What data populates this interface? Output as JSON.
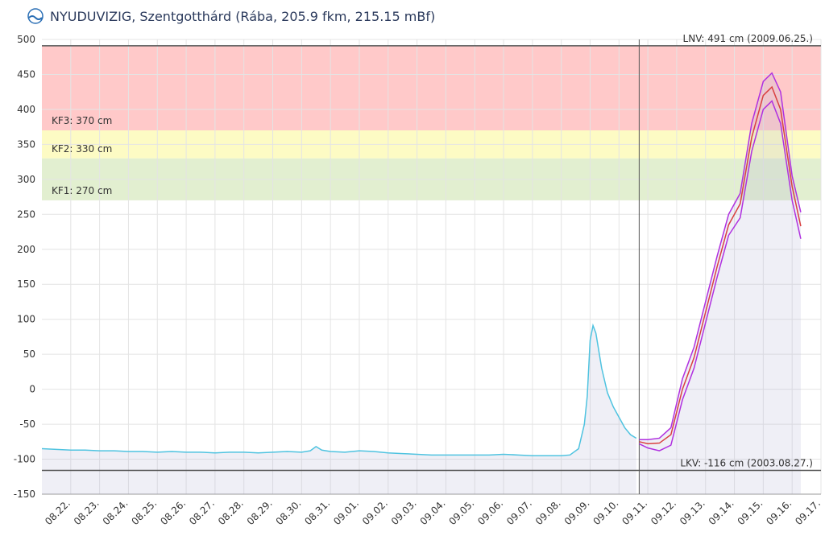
{
  "chart_data": {
    "type": "line",
    "title": "NYUDUVIZIG, Szentgotthárd (Rába, 205.9 fkm, 215.15 mBf)",
    "xlim": [
      -1,
      26
    ],
    "ylim": [
      -150,
      500
    ],
    "yticks": [
      -150,
      -100,
      -50,
      0,
      50,
      100,
      150,
      200,
      250,
      300,
      350,
      400,
      450,
      500
    ],
    "xticks": [
      {
        "value": 0,
        "label": "08.22."
      },
      {
        "value": 1,
        "label": "08.23."
      },
      {
        "value": 2,
        "label": "08.24."
      },
      {
        "value": 3,
        "label": "08.25."
      },
      {
        "value": 4,
        "label": "08.26."
      },
      {
        "value": 5,
        "label": "08.27."
      },
      {
        "value": 6,
        "label": "08.28."
      },
      {
        "value": 7,
        "label": "08.29."
      },
      {
        "value": 8,
        "label": "08.30."
      },
      {
        "value": 9,
        "label": "08.31."
      },
      {
        "value": 10,
        "label": "09.01."
      },
      {
        "value": 11,
        "label": "09.02."
      },
      {
        "value": 12,
        "label": "09.03."
      },
      {
        "value": 13,
        "label": "09.04."
      },
      {
        "value": 14,
        "label": "09.05."
      },
      {
        "value": 15,
        "label": "09.06."
      },
      {
        "value": 16,
        "label": "09.07."
      },
      {
        "value": 17,
        "label": "09.08."
      },
      {
        "value": 18,
        "label": "09.09."
      },
      {
        "value": 19,
        "label": "09.10."
      },
      {
        "value": 20,
        "label": "09.11."
      },
      {
        "value": 21,
        "label": "09.12."
      },
      {
        "value": 22,
        "label": "09.13."
      },
      {
        "value": 23,
        "label": "09.14."
      },
      {
        "value": 24,
        "label": "09.15."
      },
      {
        "value": 25,
        "label": "09.16."
      },
      {
        "value": 26,
        "label": "09.17."
      }
    ],
    "grid": true,
    "bands": [
      {
        "label": "KF3: 370 cm",
        "from": 370,
        "to": 491,
        "color": "#ffc9c9"
      },
      {
        "label": "KF2: 330 cm",
        "from": 330,
        "to": 370,
        "color": "#fdfbc4"
      },
      {
        "label": "KF1: 270 cm",
        "from": 270,
        "to": 330,
        "color": "#e2efd0"
      }
    ],
    "levels": [
      {
        "label": "LNV: 491 cm (2009.06.25.)",
        "value": 491
      },
      {
        "label": "LKV: -116 cm (2003.08.27.)",
        "value": -116
      }
    ],
    "series": [
      {
        "color": "#4fc3e0",
        "area": true,
        "x": [
          -1,
          -0.5,
          0,
          0.5,
          1,
          1.5,
          2,
          2.5,
          3,
          3.5,
          4,
          4.5,
          5,
          5.5,
          6,
          6.5,
          7,
          7.5,
          8,
          8.3,
          8.5,
          8.7,
          9,
          9.5,
          10,
          10.5,
          11,
          11.5,
          12,
          12.5,
          13,
          13.5,
          14,
          14.5,
          15,
          15.5,
          16,
          16.5,
          17,
          17.3,
          17.6,
          17.8,
          17.9,
          18.0,
          18.1,
          18.2,
          18.4,
          18.6,
          18.8,
          19.0,
          19.2,
          19.4,
          19.6
        ],
        "values": [
          -85,
          -86,
          -87,
          -87,
          -88,
          -88,
          -89,
          -89,
          -90,
          -89,
          -90,
          -90,
          -91,
          -90,
          -90,
          -91,
          -90,
          -89,
          -90,
          -88,
          -82,
          -87,
          -89,
          -90,
          -88,
          -89,
          -91,
          -92,
          -93,
          -94,
          -94,
          -94,
          -94,
          -94,
          -93,
          -94,
          -95,
          -95,
          -95,
          -94,
          -85,
          -50,
          -10,
          70,
          91,
          80,
          30,
          -5,
          -25,
          -40,
          -55,
          -65,
          -70
        ]
      },
      {
        "color": "#b030e0",
        "area": true,
        "x": [
          19.7,
          20.0,
          20.4,
          20.8,
          21.2,
          21.6,
          22.0,
          22.4,
          22.8,
          23.2,
          23.6,
          24.0,
          24.3,
          24.6,
          25.0,
          25.3
        ],
        "values": [
          -72,
          -72,
          -70,
          -55,
          15,
          60,
          125,
          190,
          250,
          280,
          380,
          440,
          452,
          425,
          305,
          253
        ]
      },
      {
        "color": "#d94040",
        "x": [
          19.7,
          20.0,
          20.4,
          20.8,
          21.2,
          21.6,
          22.0,
          22.4,
          22.8,
          23.2,
          23.6,
          24.0,
          24.3,
          24.6,
          25.0,
          25.3
        ],
        "values": [
          -75,
          -78,
          -77,
          -65,
          0,
          45,
          110,
          175,
          235,
          265,
          360,
          420,
          432,
          400,
          290,
          233
        ]
      },
      {
        "color": "#b030e0",
        "x": [
          19.7,
          20.0,
          20.4,
          20.8,
          21.2,
          21.6,
          22.0,
          22.4,
          22.8,
          23.2,
          23.6,
          24.0,
          24.3,
          24.6,
          25.0,
          25.3
        ],
        "values": [
          -78,
          -84,
          -88,
          -80,
          -15,
          30,
          95,
          160,
          220,
          245,
          340,
          400,
          412,
          380,
          270,
          215
        ]
      }
    ]
  }
}
